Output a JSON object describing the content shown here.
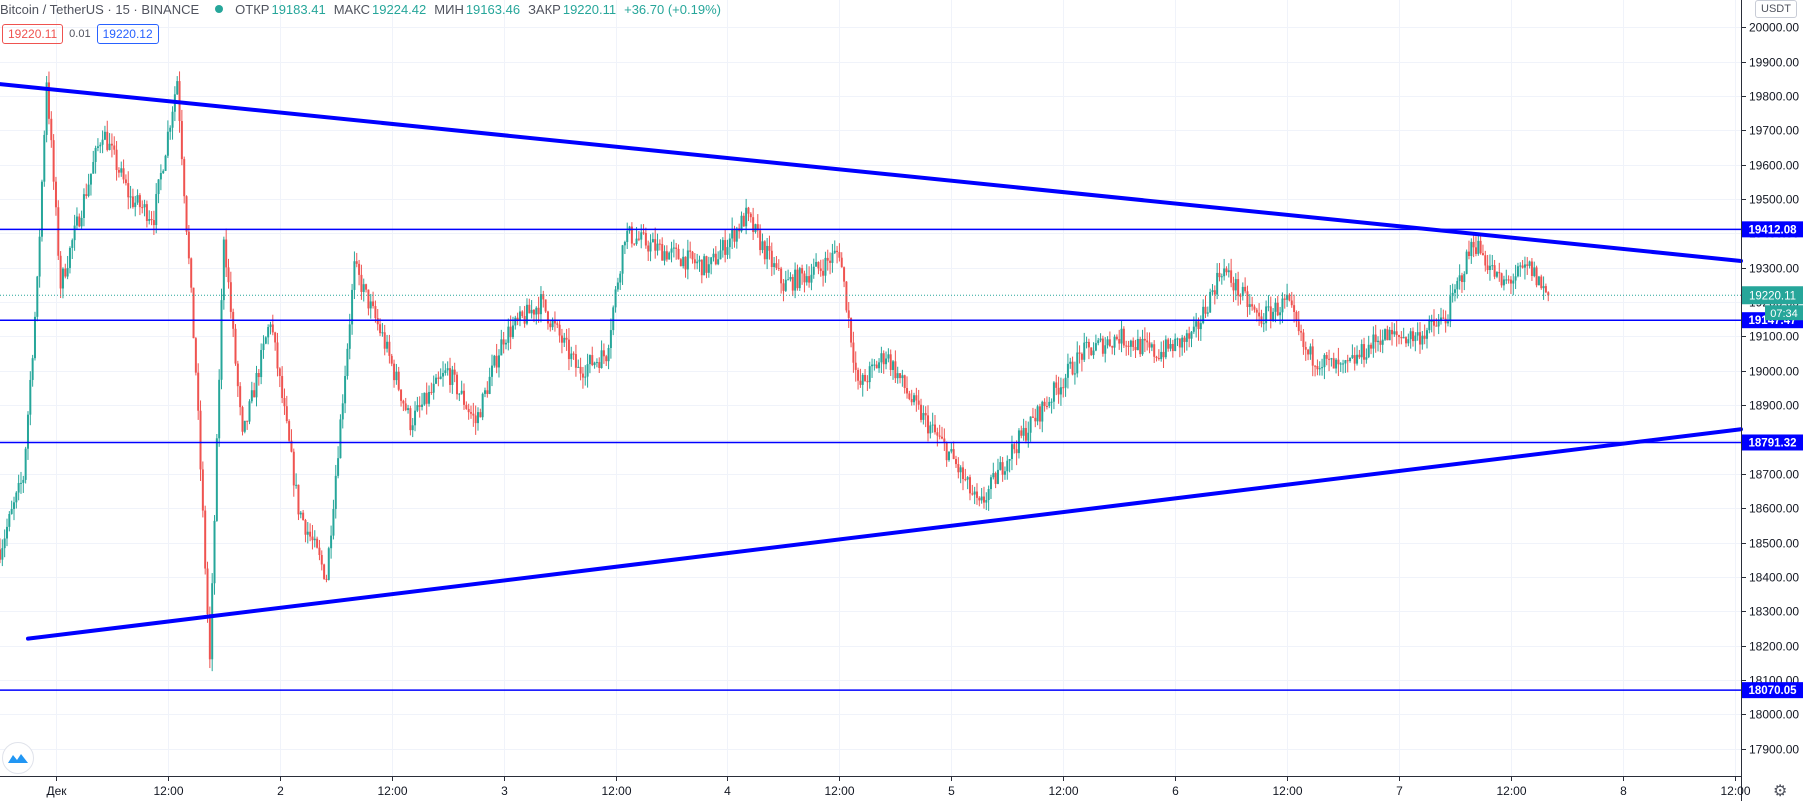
{
  "header": {
    "symbol": "Bitcoin / TetherUS · 15 · BINANCE",
    "open_label": "ОТКР",
    "open_value": "19183.41",
    "high_label": "МАКС",
    "high_value": "19224.42",
    "low_label": "МИН",
    "low_value": "19163.46",
    "close_label": "ЗАКР",
    "close_value": "19220.11",
    "change": "+36.70 (+0.19%)"
  },
  "trade": {
    "sell_price": "19220.11",
    "spread": "0.01",
    "buy_price": "19220.12"
  },
  "currency": "USDT",
  "colors": {
    "up": "#26a69a",
    "down": "#ef5350",
    "drawing": "#0000ff",
    "grid": "#f0f3fa"
  },
  "chart_data": {
    "type": "candlestick",
    "y_axis": {
      "min": 17820,
      "max": 20080,
      "ticks": [
        17900,
        18000,
        18100,
        18200,
        18300,
        18400,
        18500,
        18600,
        18700,
        18800,
        18900,
        19000,
        19100,
        19200,
        19300,
        19400,
        19500,
        19600,
        19700,
        19800,
        19900,
        20000
      ],
      "tick_labels": [
        "17900.00",
        "18000.00",
        "18100.00",
        "18200.00",
        "18300.00",
        "18400.00",
        "18500.00",
        "18600.00",
        "18700.00",
        "18800.00",
        "18900.00",
        "19000.00",
        "19100.00",
        "19200.00",
        "19300.00",
        "19400.00",
        "19500.00",
        "19600.00",
        "19700.00",
        "19800.00",
        "19900.00",
        "20000.00"
      ]
    },
    "x_axis": {
      "start": "2020-11-30T18:00",
      "end": "2020-12-08T12:40",
      "ticks": [
        "2020-12-01T00:00",
        "2020-12-01T12:00",
        "2020-12-02T00:00",
        "2020-12-02T12:00",
        "2020-12-03T00:00",
        "2020-12-03T12:00",
        "2020-12-04T00:00",
        "2020-12-04T12:00",
        "2020-12-05T00:00",
        "2020-12-05T12:00",
        "2020-12-06T00:00",
        "2020-12-06T12:00",
        "2020-12-07T00:00",
        "2020-12-07T12:00",
        "2020-12-08T00:00",
        "2020-12-08T12:00"
      ],
      "tick_labels": [
        "Дек",
        "12:00",
        "2",
        "12:00",
        "3",
        "12:00",
        "4",
        "12:00",
        "5",
        "12:00",
        "6",
        "12:00",
        "7",
        "12:00",
        "8",
        "12:00"
      ]
    },
    "last_price": {
      "value": 19220.11,
      "label": "19220.11",
      "countdown": "07:34"
    },
    "horizontal_levels": [
      {
        "value": 19412.08,
        "label": "19412.08"
      },
      {
        "value": 19147.47,
        "label": "19147.47"
      },
      {
        "value": 18791.32,
        "label": "18791.32"
      },
      {
        "value": 18070.05,
        "label": "18070.05"
      }
    ],
    "trend_lines": [
      {
        "name": "upper",
        "points": [
          [
            "2020-11-30T18:00",
            19835
          ],
          [
            "2020-12-08T12:40",
            19320
          ]
        ]
      },
      {
        "name": "lower",
        "points": [
          [
            "2020-11-30T21:00",
            18220
          ],
          [
            "2020-12-08T12:40",
            18830
          ]
        ]
      }
    ],
    "price_path": [
      [
        "2020-11-30T18:00",
        18480
      ],
      [
        "2020-11-30T20:30",
        18690
      ],
      [
        "2020-11-30T22:00",
        19250
      ],
      [
        "2020-11-30T23:00",
        19850
      ],
      [
        "2020-12-01T00:30",
        19250
      ],
      [
        "2020-12-01T02:00",
        19400
      ],
      [
        "2020-12-01T05:00",
        19700
      ],
      [
        "2020-12-01T08:00",
        19500
      ],
      [
        "2020-12-01T10:30",
        19450
      ],
      [
        "2020-12-01T13:00",
        19850
      ],
      [
        "2020-12-01T15:00",
        19000
      ],
      [
        "2020-12-01T16:30",
        18150
      ],
      [
        "2020-12-01T18:00",
        19400
      ],
      [
        "2020-12-01T20:00",
        18800
      ],
      [
        "2020-12-01T23:00",
        19150
      ],
      [
        "2020-12-02T02:00",
        18600
      ],
      [
        "2020-12-02T05:00",
        18400
      ],
      [
        "2020-12-02T08:00",
        19300
      ],
      [
        "2020-12-02T11:00",
        19100
      ],
      [
        "2020-12-02T14:00",
        18850
      ],
      [
        "2020-12-02T18:00",
        19000
      ],
      [
        "2020-12-02T21:00",
        18850
      ],
      [
        "2020-12-03T00:00",
        19100
      ],
      [
        "2020-12-03T04:00",
        19200
      ],
      [
        "2020-12-03T08:00",
        19000
      ],
      [
        "2020-12-03T11:00",
        19050
      ],
      [
        "2020-12-03T13:00",
        19400
      ],
      [
        "2020-12-03T17:00",
        19350
      ],
      [
        "2020-12-03T22:00",
        19300
      ],
      [
        "2020-12-04T02:00",
        19450
      ],
      [
        "2020-12-04T06:00",
        19250
      ],
      [
        "2020-12-04T10:00",
        19300
      ],
      [
        "2020-12-04T12:00",
        19350
      ],
      [
        "2020-12-04T14:00",
        18950
      ],
      [
        "2020-12-04T17:00",
        19050
      ],
      [
        "2020-12-04T20:00",
        18900
      ],
      [
        "2020-12-05T00:00",
        18750
      ],
      [
        "2020-12-05T03:00",
        18600
      ],
      [
        "2020-12-05T06:00",
        18750
      ],
      [
        "2020-12-05T10:00",
        18900
      ],
      [
        "2020-12-05T14:00",
        19050
      ],
      [
        "2020-12-05T18:00",
        19100
      ],
      [
        "2020-12-05T22:00",
        19050
      ],
      [
        "2020-12-06T02:00",
        19100
      ],
      [
        "2020-12-06T05:00",
        19300
      ],
      [
        "2020-12-06T09:00",
        19150
      ],
      [
        "2020-12-06T12:00",
        19200
      ],
      [
        "2020-12-06T14:00",
        19050
      ],
      [
        "2020-12-06T18:00",
        19000
      ],
      [
        "2020-12-06T22:00",
        19100
      ],
      [
        "2020-12-07T02:00",
        19100
      ],
      [
        "2020-12-07T05:00",
        19150
      ],
      [
        "2020-12-07T08:00",
        19380
      ],
      [
        "2020-12-07T11:00",
        19250
      ],
      [
        "2020-12-07T14:00",
        19300
      ],
      [
        "2020-12-07T16:00",
        19220
      ]
    ]
  }
}
